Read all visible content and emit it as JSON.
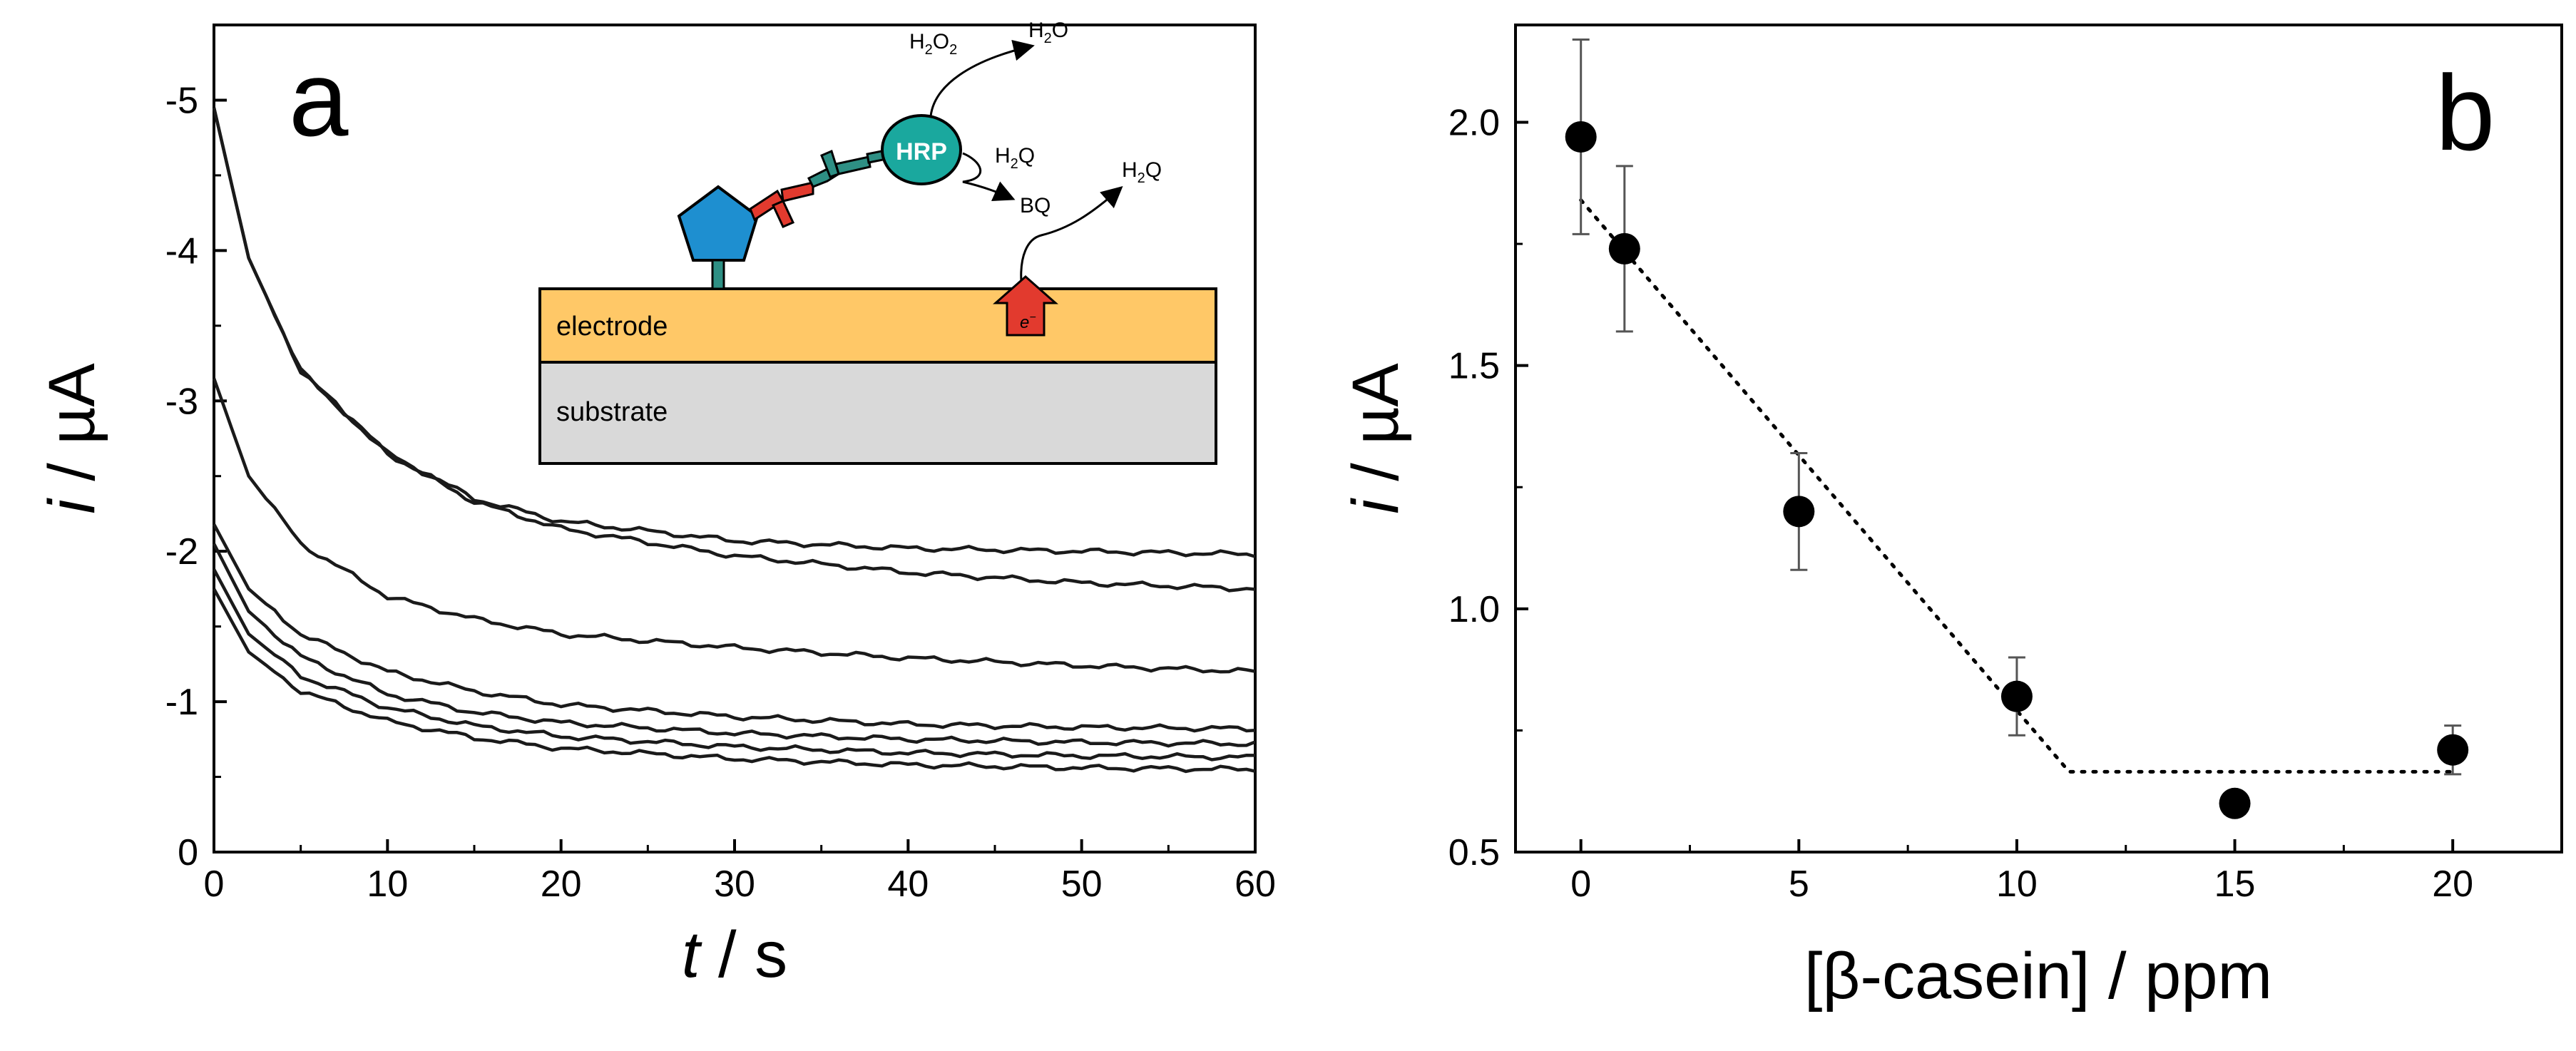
{
  "panels": {
    "a": {
      "letter": "a"
    },
    "b": {
      "letter": "b"
    }
  },
  "inset": {
    "electrode_label": "electrode",
    "substrate_label": "substrate",
    "enzyme_label": "HRP",
    "h2o2": "H2O2",
    "h2o_top": "H2O",
    "h2q_mid": "H2Q",
    "bq": "BQ",
    "h2q_right": "H2Q",
    "electron": "e-",
    "colors": {
      "electrode": "#FFC867",
      "substrate": "#D9D9D9",
      "antigen": "#1E8FD0",
      "primary_antibody": "#E23A2E",
      "secondary_antibody": "#2E8F84",
      "hrp": "#1AA89E",
      "arrow": "#E23A2E"
    }
  },
  "chart_data": [
    {
      "type": "line",
      "panel": "a",
      "xlabel_italic": "t",
      "xlabel_rest": " / s",
      "ylabel_italic": "i",
      "ylabel_rest": " / µA",
      "xlim": [
        0,
        60
      ],
      "ylim": [
        0,
        -5.5
      ],
      "xticks": [
        "0",
        "10",
        "20",
        "30",
        "40",
        "50",
        "60"
      ],
      "yticks": [
        "0",
        "-1",
        "-2",
        "-3",
        "-4",
        "-5"
      ],
      "series": [
        {
          "values_at_t": {
            "t": [
              0,
              2,
              5,
              10,
              15,
              20,
              30,
              40,
              50,
              60
            ],
            "i": [
              -4.95,
              -3.95,
              -3.2,
              -2.65,
              -2.35,
              -2.2,
              -2.07,
              -2.02,
              -2.0,
              -1.98
            ]
          }
        },
        {
          "values_at_t": {
            "t": [
              0,
              2,
              5,
              10,
              15,
              20,
              30,
              40,
              50,
              60
            ],
            "i": [
              -4.95,
              -3.95,
              -3.2,
              -2.65,
              -2.33,
              -2.15,
              -1.97,
              -1.86,
              -1.79,
              -1.75
            ]
          }
        },
        {
          "values_at_t": {
            "t": [
              0,
              2,
              5,
              10,
              15,
              20,
              30,
              40,
              50,
              60
            ],
            "i": [
              -3.15,
              -2.5,
              -2.05,
              -1.7,
              -1.55,
              -1.45,
              -1.36,
              -1.29,
              -1.24,
              -1.2
            ]
          }
        },
        {
          "values_at_t": {
            "t": [
              0,
              2,
              5,
              10,
              15,
              20,
              30,
              40,
              50,
              60
            ],
            "i": [
              -2.18,
              -1.75,
              -1.45,
              -1.2,
              -1.07,
              -0.98,
              -0.9,
              -0.85,
              -0.83,
              -0.82
            ]
          }
        },
        {
          "values_at_t": {
            "t": [
              0,
              2,
              5,
              10,
              15,
              20,
              30,
              40,
              50,
              60
            ],
            "i": [
              -2.05,
              -1.6,
              -1.3,
              -1.05,
              -0.93,
              -0.86,
              -0.79,
              -0.75,
              -0.73,
              -0.72
            ]
          }
        },
        {
          "values_at_t": {
            "t": [
              0,
              2,
              5,
              10,
              15,
              20,
              30,
              40,
              50,
              60
            ],
            "i": [
              -1.88,
              -1.45,
              -1.17,
              -0.96,
              -0.84,
              -0.77,
              -0.7,
              -0.66,
              -0.64,
              -0.63
            ]
          }
        },
        {
          "values_at_t": {
            "t": [
              0,
              2,
              5,
              10,
              15,
              20,
              30,
              40,
              50,
              60
            ],
            "i": [
              -1.75,
              -1.33,
              -1.07,
              -0.87,
              -0.76,
              -0.69,
              -0.62,
              -0.58,
              -0.56,
              -0.55
            ]
          }
        }
      ],
      "grid": false
    },
    {
      "type": "scatter",
      "panel": "b",
      "xlabel": "[β-casein] / ppm",
      "ylabel_italic": "i",
      "ylabel_rest": " / µA",
      "xlim": [
        -1.5,
        22.5
      ],
      "ylim": [
        0.5,
        2.2
      ],
      "xticks": [
        "0",
        "5",
        "10",
        "15",
        "20"
      ],
      "yticks": [
        "0.5",
        "1.0",
        "1.5",
        "2.0"
      ],
      "x": [
        0,
        1,
        5,
        10,
        15,
        20
      ],
      "y": [
        1.97,
        1.74,
        1.2,
        0.82,
        0.6,
        0.71
      ],
      "error": [
        0.2,
        0.17,
        0.12,
        0.08,
        0.02,
        0.05
      ],
      "fit_line": {
        "x": [
          0,
          11.2,
          20
        ],
        "y": [
          1.84,
          0.665,
          0.665
        ],
        "style": "dotted"
      },
      "grid": false
    }
  ]
}
